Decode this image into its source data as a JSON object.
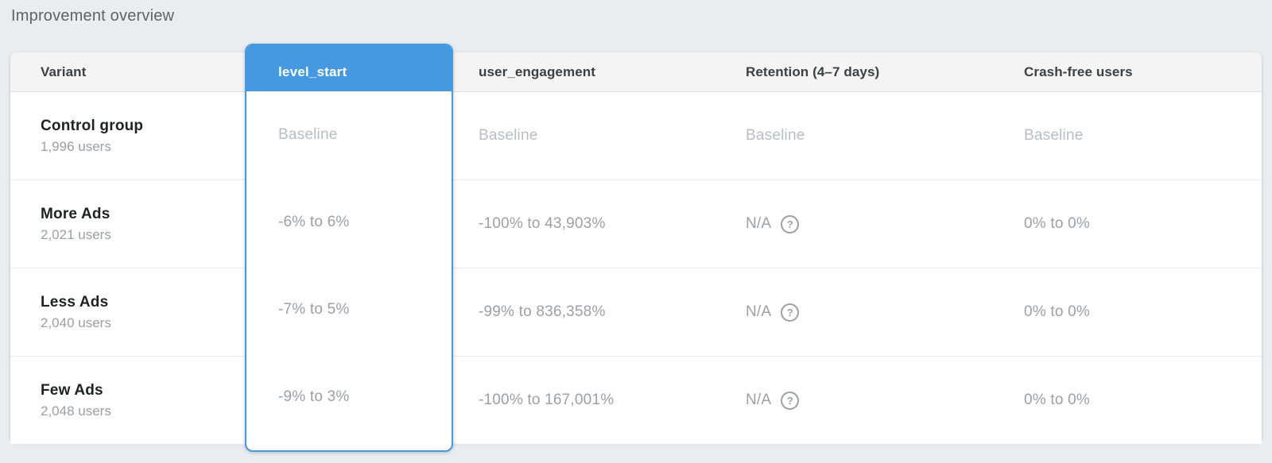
{
  "page": {
    "title": "Improvement overview"
  },
  "colors": {
    "accent": "#4499e0"
  },
  "icons": {
    "help_glyph": "?"
  },
  "table": {
    "columns": [
      {
        "id": "variant",
        "label": "Variant"
      },
      {
        "id": "level_start",
        "label": "level_start",
        "highlighted": true
      },
      {
        "id": "user_engagement",
        "label": "user_engagement"
      },
      {
        "id": "retention",
        "label": "Retention (4–7 days)"
      },
      {
        "id": "crash_free",
        "label": "Crash-free users"
      }
    ],
    "rows": [
      {
        "variant": "Control group",
        "users": "1,996 users",
        "level_start": "Baseline",
        "user_engagement": "Baseline",
        "retention": "Baseline",
        "crash_free": "Baseline"
      },
      {
        "variant": "More Ads",
        "users": "2,021 users",
        "level_start": "-6% to 6%",
        "user_engagement": "-100% to 43,903%",
        "retention": "N/A",
        "crash_free": "0% to 0%"
      },
      {
        "variant": "Less Ads",
        "users": "2,040 users",
        "level_start": "-7% to 5%",
        "user_engagement": "-99% to 836,358%",
        "retention": "N/A",
        "crash_free": "0% to 0%"
      },
      {
        "variant": "Few Ads",
        "users": "2,048 users",
        "level_start": "-9% to 3%",
        "user_engagement": "-100% to 167,001%",
        "retention": "N/A",
        "crash_free": "0% to 0%"
      }
    ]
  }
}
